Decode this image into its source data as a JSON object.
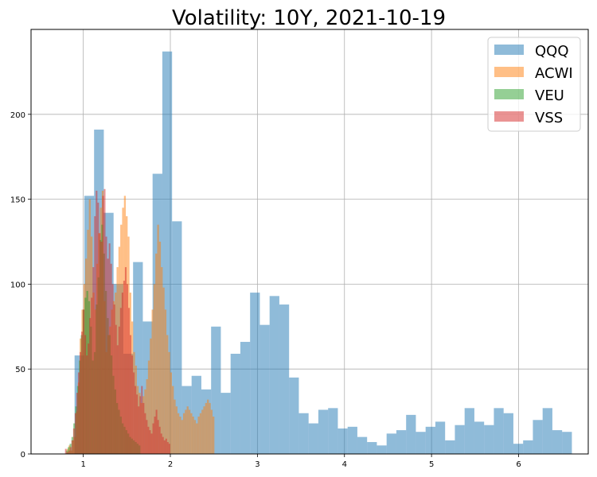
{
  "chart_data": {
    "type": "bar",
    "subtype": "overlaid-histogram",
    "title": "Volatility: 10Y, 2021-10-19",
    "xlabel": "",
    "ylabel": "",
    "xlim": [
      0.4,
      6.8
    ],
    "ylim": [
      0,
      250
    ],
    "xticks": [
      1,
      2,
      3,
      4,
      5,
      6
    ],
    "yticks": [
      0,
      50,
      100,
      150,
      200
    ],
    "grid": true,
    "legend_position": "top-right",
    "series": [
      {
        "name": "QQQ",
        "color": "#1f77b4",
        "bin_start": 0.9,
        "bin_width": 0.112,
        "values": [
          58,
          152,
          191,
          142,
          100,
          59,
          113,
          78,
          165,
          237,
          137,
          40,
          46,
          38,
          75,
          36,
          59,
          66,
          95,
          76,
          93,
          88,
          45,
          24,
          18,
          26,
          27,
          15,
          16,
          10,
          7,
          5,
          12,
          14,
          23,
          13,
          16,
          19,
          8,
          17,
          27,
          19,
          17,
          27,
          24,
          6,
          8,
          20,
          27,
          14,
          13
        ]
      },
      {
        "name": "ACWI",
        "color": "#ff7f0e",
        "bin_start": 0.81,
        "bin_width": 0.0212,
        "values": [
          3,
          5,
          2,
          8,
          10,
          25,
          42,
          68,
          85,
          100,
          115,
          132,
          150,
          128,
          95,
          85,
          112,
          130,
          145,
          155,
          90,
          60,
          70,
          75,
          85,
          90,
          95,
          110,
          122,
          135,
          145,
          152,
          140,
          128,
          95,
          78,
          60,
          52,
          40,
          36,
          30,
          34,
          38,
          44,
          55,
          68,
          85,
          100,
          118,
          135,
          125,
          110,
          98,
          85,
          70,
          60,
          48,
          40,
          32,
          28,
          24,
          22,
          20,
          24,
          26,
          28,
          26,
          24,
          22,
          20,
          18,
          22,
          24,
          26,
          28,
          30,
          32,
          30,
          26,
          22
        ]
      },
      {
        "name": "VEU",
        "color": "#2ca02c",
        "bin_start": 0.8,
        "bin_width": 0.0214,
        "values": [
          2,
          4,
          6,
          10,
          18,
          28,
          40,
          55,
          70,
          85,
          92,
          96,
          90,
          75,
          55,
          60,
          88,
          104,
          126,
          135,
          118,
          96,
          80,
          70,
          58,
          46,
          38,
          30,
          26,
          22,
          18,
          16,
          14,
          12,
          10,
          9,
          8,
          7,
          6,
          5
        ]
      },
      {
        "name": "VSS",
        "color": "#d62728",
        "bin_start": 0.79,
        "bin_width": 0.0186,
        "values": [
          3,
          1,
          2,
          4,
          8,
          15,
          24,
          36,
          48,
          60,
          72,
          85,
          70,
          58,
          65,
          80,
          92,
          110,
          140,
          155,
          148,
          130,
          125,
          152,
          156,
          128,
          115,
          124,
          112,
          100,
          88,
          76,
          64,
          75,
          86,
          95,
          102,
          110,
          100,
          86,
          70,
          58,
          48,
          40,
          35,
          28,
          34,
          40,
          30,
          24,
          20,
          16,
          14,
          12,
          18,
          22,
          26,
          20,
          16,
          12,
          10,
          8,
          9,
          7,
          6
        ]
      }
    ]
  }
}
